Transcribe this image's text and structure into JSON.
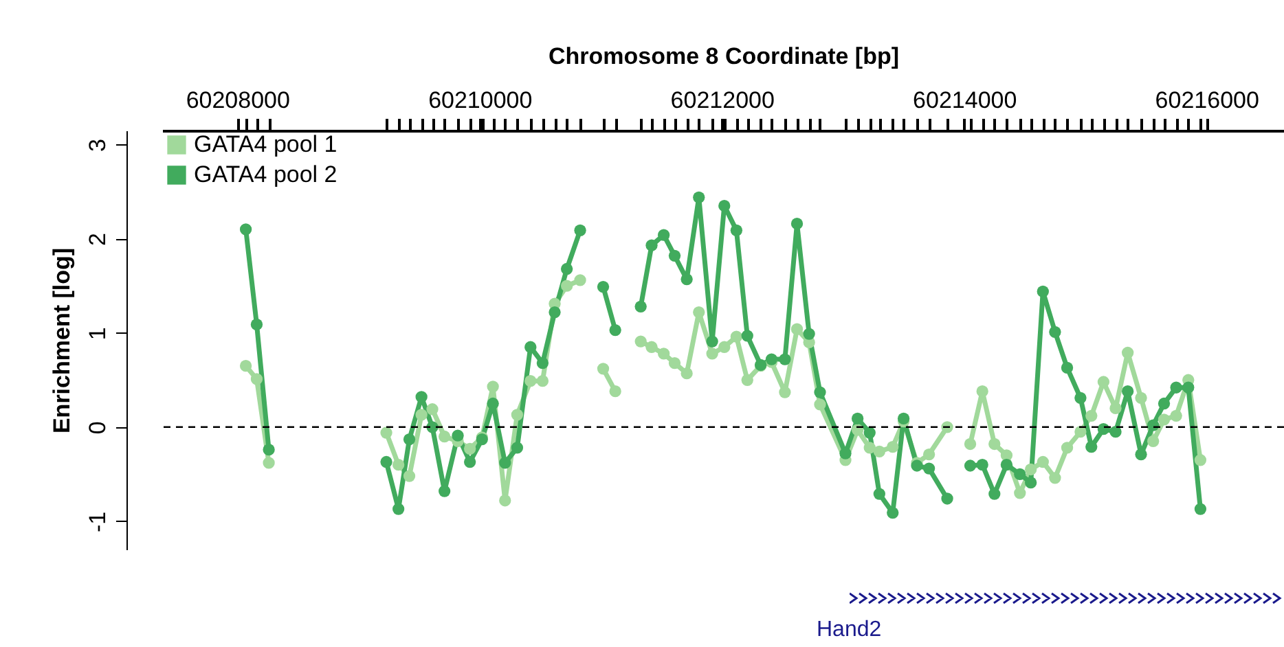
{
  "chart_data": {
    "type": "line",
    "xlabel": "Chromosome 8 Coordinate [bp]",
    "ylabel": "Enrichment [log]",
    "x": [
      60208070,
      60208160,
      60208260,
      60208700,
      60209230,
      60209330,
      60209420,
      60209520,
      60209610,
      60209710,
      60209820,
      60209920,
      60210020,
      60210110,
      60210210,
      60210310,
      60210420,
      60210520,
      60210620,
      60210720,
      60210830,
      60210930,
      60211020,
      60211120,
      60211230,
      60211330,
      60211420,
      60211520,
      60211610,
      60211710,
      60211810,
      60211920,
      60212020,
      60212120,
      60212210,
      60212320,
      60212410,
      60212520,
      60212620,
      60212720,
      60212810,
      60213020,
      60213120,
      60213220,
      60213300,
      60213410,
      60213500,
      60213610,
      60213710,
      60213860,
      60213950,
      60214050,
      60214150,
      60214250,
      60214350,
      60214460,
      60214550,
      60214650,
      60214750,
      60214850,
      60214960,
      60215050,
      60215150,
      60215250,
      60215350,
      60215460,
      60215560,
      60215650,
      60215750,
      60215850,
      60215950
    ],
    "series": [
      {
        "name": "GATA4 pool 1",
        "color": "#a1d99b",
        "values": [
          0.65,
          0.51,
          -0.38,
          null,
          -0.06,
          -0.4,
          -0.52,
          0.13,
          0.19,
          -0.1,
          -0.15,
          -0.23,
          -0.11,
          0.43,
          -0.78,
          0.13,
          0.49,
          0.49,
          1.31,
          1.5,
          1.56,
          null,
          0.62,
          0.38,
          null,
          0.91,
          0.85,
          0.78,
          0.68,
          0.57,
          1.22,
          0.78,
          0.85,
          0.96,
          0.5,
          0.65,
          0.69,
          0.37,
          1.04,
          0.9,
          0.24,
          -0.35,
          -0.03,
          -0.22,
          -0.26,
          -0.21,
          0.06,
          -0.38,
          -0.29,
          0,
          null,
          -0.18,
          0.38,
          -0.18,
          -0.3,
          -0.7,
          -0.45,
          -0.37,
          -0.54,
          -0.22,
          -0.05,
          0.12,
          0.48,
          0.2,
          0.79,
          0.31,
          -0.15,
          0.08,
          0.12,
          0.5,
          -0.35
        ]
      },
      {
        "name": "GATA4 pool 2",
        "color": "#41ab5d",
        "values": [
          2.1,
          1.09,
          -0.24,
          null,
          -0.37,
          -0.87,
          -0.13,
          0.32,
          0,
          -0.68,
          -0.09,
          -0.37,
          -0.13,
          0.25,
          -0.38,
          -0.22,
          0.85,
          0.68,
          1.22,
          1.68,
          2.09,
          null,
          1.49,
          1.03,
          null,
          1.28,
          1.93,
          2.04,
          1.82,
          1.57,
          2.44,
          0.91,
          2.35,
          2.09,
          0.97,
          0.66,
          0.72,
          0.72,
          2.16,
          0.99,
          0.37,
          -0.28,
          0.09,
          -0.06,
          -0.71,
          -0.91,
          0.09,
          -0.41,
          -0.44,
          -0.76,
          null,
          -0.41,
          -0.4,
          -0.71,
          -0.4,
          -0.5,
          -0.59,
          1.44,
          1.01,
          0.63,
          0.31,
          -0.21,
          -0.02,
          -0.05,
          0.38,
          -0.29,
          0.02,
          0.25,
          0.42,
          0.42,
          -0.87
        ]
      }
    ],
    "xlim": [
      60207380,
      60216640
    ],
    "xticks": [
      60208000,
      60210000,
      60212000,
      60214000,
      60216000,
      {
        "value": 60208070,
        "label": null
      },
      {
        "value": 60208160,
        "label": null
      },
      {
        "value": 60208260,
        "label": null
      },
      {
        "value": 60209230,
        "label": null
      },
      {
        "value": 60209330,
        "label": null
      },
      {
        "value": 60209420,
        "label": null
      },
      {
        "value": 60209520,
        "label": null
      },
      {
        "value": 60209610,
        "label": null
      },
      {
        "value": 60209710,
        "label": null
      },
      {
        "value": 60209820,
        "label": null
      },
      {
        "value": 60209920,
        "label": null
      },
      {
        "value": 60210020,
        "label": null
      },
      {
        "value": 60210110,
        "label": null
      },
      {
        "value": 60210210,
        "label": null
      },
      {
        "value": 60210310,
        "label": null
      },
      {
        "value": 60210420,
        "label": null
      },
      {
        "value": 60210520,
        "label": null
      },
      {
        "value": 60210620,
        "label": null
      },
      {
        "value": 60210720,
        "label": null
      },
      {
        "value": 60210830,
        "label": null
      },
      {
        "value": 60211020,
        "label": null
      },
      {
        "value": 60211120,
        "label": null
      },
      {
        "value": 60211330,
        "label": null
      },
      {
        "value": 60211420,
        "label": null
      },
      {
        "value": 60211520,
        "label": null
      },
      {
        "value": 60211610,
        "label": null
      },
      {
        "value": 60211710,
        "label": null
      },
      {
        "value": 60211810,
        "label": null
      },
      {
        "value": 60211920,
        "label": null
      },
      {
        "value": 60212020,
        "label": null
      },
      {
        "value": 60212120,
        "label": null
      },
      {
        "value": 60212210,
        "label": null
      },
      {
        "value": 60212320,
        "label": null
      },
      {
        "value": 60212410,
        "label": null
      },
      {
        "value": 60212520,
        "label": null
      },
      {
        "value": 60212620,
        "label": null
      },
      {
        "value": 60212720,
        "label": null
      },
      {
        "value": 60212810,
        "label": null
      },
      {
        "value": 60213020,
        "label": null
      },
      {
        "value": 60213120,
        "label": null
      },
      {
        "value": 60213220,
        "label": null
      },
      {
        "value": 60213300,
        "label": null
      },
      {
        "value": 60213410,
        "label": null
      },
      {
        "value": 60213500,
        "label": null
      },
      {
        "value": 60213610,
        "label": null
      },
      {
        "value": 60213710,
        "label": null
      },
      {
        "value": 60213860,
        "label": null
      },
      {
        "value": 60214050,
        "label": null
      },
      {
        "value": 60214150,
        "label": null
      },
      {
        "value": 60214250,
        "label": null
      },
      {
        "value": 60214350,
        "label": null
      },
      {
        "value": 60214460,
        "label": null
      },
      {
        "value": 60214550,
        "label": null
      },
      {
        "value": 60214650,
        "label": null
      },
      {
        "value": 60214750,
        "label": null
      },
      {
        "value": 60214850,
        "label": null
      },
      {
        "value": 60214960,
        "label": null
      },
      {
        "value": 60215050,
        "label": null
      },
      {
        "value": 60215150,
        "label": null
      },
      {
        "value": 60215250,
        "label": null
      },
      {
        "value": 60215350,
        "label": null
      },
      {
        "value": 60215460,
        "label": null
      },
      {
        "value": 60215560,
        "label": null
      },
      {
        "value": 60215650,
        "label": null
      },
      {
        "value": 60215750,
        "label": null
      },
      {
        "value": 60215850,
        "label": null
      },
      {
        "value": 60215950,
        "label": null
      }
    ],
    "ylim": [
      -1.3,
      3.15
    ],
    "yticks": [
      -1,
      0,
      1,
      2,
      3
    ],
    "ref_lines": [
      {
        "axis": "y",
        "value": 0,
        "line_style": "dashed"
      }
    ],
    "legend": "top left",
    "marker": "circle",
    "line_style": "solid",
    "annotations": [
      "Hand2"
    ]
  }
}
